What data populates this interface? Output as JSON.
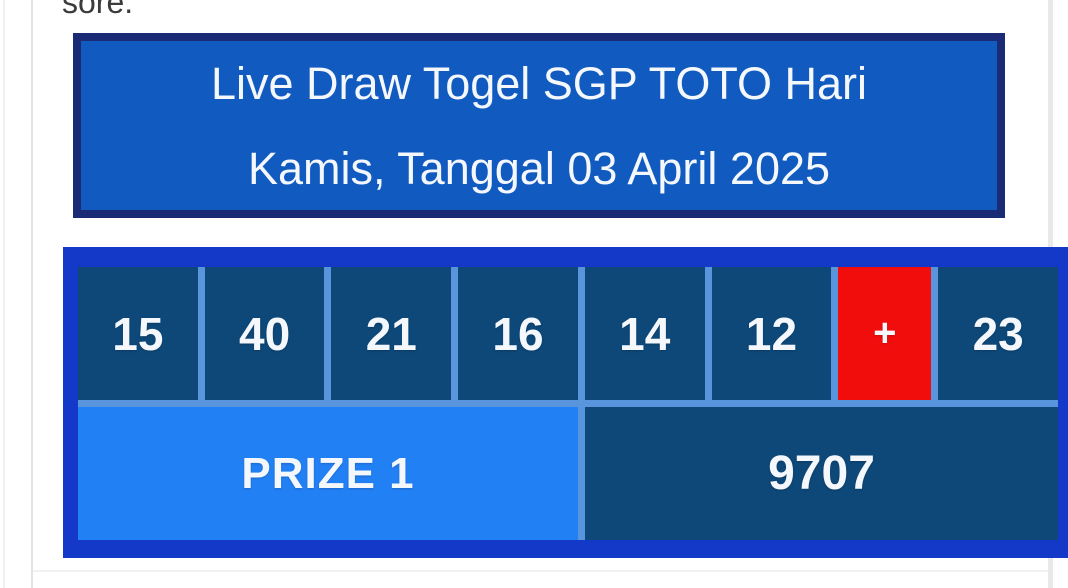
{
  "colors": {
    "banner_fill": "#115abf",
    "banner_border": "#1b2a74",
    "table_frame": "#1439c9",
    "cell_dark": "#0d4879",
    "cell_gap": "#5995dc",
    "prize_cell": "#2280f5",
    "plus_cell": "#f20d0d",
    "light_text": "#f4f7fb",
    "body_text": "#3b3b3b"
  },
  "page": {
    "leading_text": "sore.",
    "banner": {
      "line1": "Live Draw Togel SGP TOTO Hari",
      "line2": "Kamis, Tanggal 03 April 2025"
    },
    "result_table": {
      "numbers": [
        "15",
        "40",
        "21",
        "16",
        "14",
        "12",
        "+",
        "23"
      ],
      "prize_label": "PRIZE 1",
      "prize_value": "9707"
    }
  }
}
